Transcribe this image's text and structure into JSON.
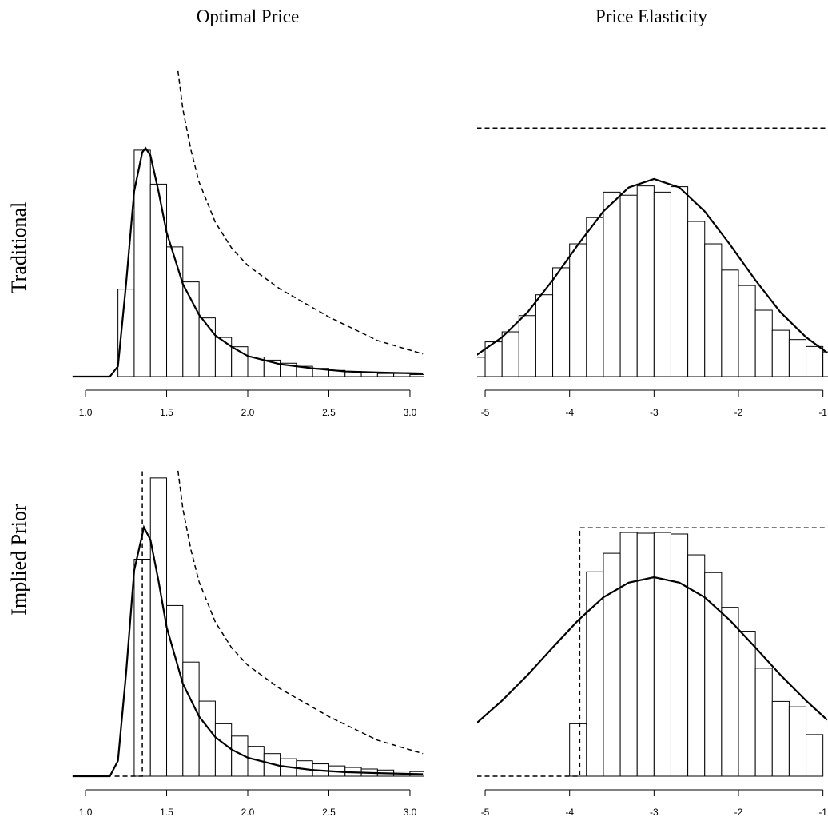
{
  "column_titles": [
    "Optimal Price",
    "Price Elasticity"
  ],
  "row_labels": [
    "Traditional",
    "Implied Prior"
  ],
  "chart_data": [
    {
      "type": "histogram",
      "bins": [
        1.2,
        1.3,
        1.4,
        1.5,
        1.6,
        1.7,
        1.8,
        1.9,
        2.0,
        2.1,
        2.2,
        2.3,
        2.4,
        2.5,
        2.6,
        2.7,
        2.8,
        2.9,
        3.0,
        3.1
      ],
      "counts": [
        0.85,
        2.2,
        1.87,
        1.26,
        0.92,
        0.57,
        0.38,
        0.29,
        0.19,
        0.16,
        0.13,
        0.1,
        0.08,
        0.06,
        0.05,
        0.04,
        0.03,
        0.03,
        0.02
      ],
      "color": "#ffffff",
      "series": [
        {
          "style": "solid",
          "x": [
            0.92,
            1.15,
            1.2,
            1.25,
            1.3,
            1.35,
            1.37,
            1.4,
            1.45,
            1.5,
            1.6,
            1.7,
            1.8,
            1.9,
            2.0,
            2.2,
            2.4,
            2.6,
            2.8,
            3.08
          ],
          "values": [
            0,
            0,
            0.1,
            0.9,
            1.8,
            2.18,
            2.22,
            2.15,
            1.8,
            1.4,
            0.9,
            0.6,
            0.4,
            0.29,
            0.2,
            0.12,
            0.08,
            0.05,
            0.04,
            0.03
          ]
        },
        {
          "style": "dashed",
          "x": [
            1.57,
            1.6,
            1.65,
            1.7,
            1.8,
            1.9,
            2.0,
            2.2,
            2.5,
            2.8,
            3.08
          ],
          "values": [
            2.97,
            2.6,
            2.2,
            1.89,
            1.5,
            1.25,
            1.08,
            0.85,
            0.58,
            0.35,
            0.22
          ]
        }
      ],
      "xlim": [
        0.916,
        3.084
      ],
      "ylim": [
        0,
        3.0
      ],
      "xticks": [
        {
          "value": 1.0,
          "label": "1.0"
        },
        1.5,
        {
          "value": 2.0,
          "label": "2.0"
        },
        2.5,
        {
          "value": 3.0,
          "label": "3.0"
        }
      ]
    },
    {
      "type": "histogram",
      "bins": [
        -5.2,
        -5.0,
        -4.8,
        -4.6,
        -4.4,
        -4.2,
        -4.0,
        -3.8,
        -3.6,
        -3.4,
        -3.2,
        -3.0,
        -2.8,
        -2.6,
        -2.4,
        -2.2,
        -2.0,
        -1.8,
        -1.6,
        -1.4,
        -1.2,
        -1.0,
        -0.8
      ],
      "counts": [
        0.025,
        0.045,
        0.058,
        0.079,
        0.106,
        0.141,
        0.172,
        0.206,
        0.239,
        0.235,
        0.247,
        0.239,
        0.246,
        0.201,
        0.172,
        0.138,
        0.118,
        0.086,
        0.06,
        0.048,
        0.039,
        0.032
      ],
      "color": "#ffffff",
      "series": [
        {
          "style": "solid",
          "x": [
            -5.1,
            -4.8,
            -4.5,
            -4.2,
            -3.9,
            -3.6,
            -3.3,
            -3.0,
            -2.7,
            -2.4,
            -2.1,
            -1.8,
            -1.5,
            -1.2,
            -0.95
          ],
          "values": [
            0.028,
            0.051,
            0.083,
            0.125,
            0.171,
            0.214,
            0.245,
            0.256,
            0.245,
            0.214,
            0.171,
            0.125,
            0.083,
            0.051,
            0.031
          ]
        },
        {
          "style": "dashed",
          "x": [
            -5.1,
            -0.95
          ],
          "values": [
            0.322,
            0.322
          ]
        }
      ],
      "xlim": [
        -5.095,
        -0.94
      ],
      "ylim": [
        0,
        0.4
      ],
      "xticks": [
        -5,
        -4,
        -3,
        -2,
        -1
      ]
    },
    {
      "type": "histogram",
      "bins": [
        1.3,
        1.4,
        1.5,
        1.6,
        1.7,
        1.8,
        1.9,
        2.0,
        2.1,
        2.2,
        2.3,
        2.4,
        2.5,
        2.6,
        2.7,
        2.8,
        2.9,
        3.0,
        3.1
      ],
      "counts": [
        2.11,
        2.9,
        1.66,
        1.11,
        0.73,
        0.51,
        0.39,
        0.29,
        0.22,
        0.17,
        0.15,
        0.12,
        0.1,
        0.085,
        0.07,
        0.06,
        0.05,
        0.045
      ],
      "color": "#ffffff",
      "series": [
        {
          "style": "solid",
          "x": [
            0.92,
            1.15,
            1.2,
            1.25,
            1.3,
            1.36,
            1.4,
            1.45,
            1.5,
            1.6,
            1.7,
            1.8,
            1.9,
            2.0,
            2.2,
            2.4,
            2.6,
            2.8,
            3.08
          ],
          "values": [
            0,
            0,
            0.15,
            1.0,
            2.0,
            2.42,
            2.3,
            1.9,
            1.45,
            0.9,
            0.58,
            0.38,
            0.26,
            0.18,
            0.1,
            0.06,
            0.04,
            0.03,
            0.02
          ]
        },
        {
          "style": "dashed",
          "x": [
            1.18,
            1.35,
            1.35,
            1.45,
            1.57,
            1.6,
            1.65,
            1.7,
            1.8,
            1.9,
            2.0,
            2.2,
            2.5,
            2.8,
            3.08
          ],
          "values": [
            0,
            0,
            3.0,
            null,
            2.97,
            2.6,
            2.2,
            1.89,
            1.5,
            1.25,
            1.08,
            0.85,
            0.58,
            0.35,
            0.22
          ]
        }
      ],
      "xlim": [
        0.916,
        3.084
      ],
      "ylim": [
        0,
        3.0
      ],
      "xticks": [
        {
          "value": 1.0,
          "label": "1.0"
        },
        1.5,
        {
          "value": 2.0,
          "label": "2.0"
        },
        2.5,
        {
          "value": 3.0,
          "label": "3.0"
        }
      ]
    },
    {
      "type": "histogram",
      "bins": [
        -4.0,
        -3.8,
        -3.6,
        -3.4,
        -3.2,
        -3.0,
        -2.8,
        -2.6,
        -2.4,
        -2.2,
        -2.0,
        -1.8,
        -1.6,
        -1.4,
        -1.2,
        -1.0
      ],
      "counts": [
        0.068,
        0.265,
        0.289,
        0.316,
        0.315,
        0.316,
        0.314,
        0.287,
        0.264,
        0.219,
        0.188,
        0.14,
        0.097,
        0.09,
        0.054
      ],
      "color": "#ffffff",
      "series": [
        {
          "style": "solid",
          "x": [
            -5.1,
            -4.8,
            -4.5,
            -4.2,
            -3.9,
            -3.6,
            -3.3,
            -3.0,
            -2.7,
            -2.4,
            -2.1,
            -1.8,
            -1.5,
            -1.2,
            -0.95
          ],
          "values": [
            0.069,
            0.098,
            0.131,
            0.167,
            0.202,
            0.232,
            0.251,
            0.258,
            0.251,
            0.232,
            0.202,
            0.167,
            0.131,
            0.098,
            0.073
          ]
        },
        {
          "style": "dashed",
          "x": [
            -5.1,
            -3.88,
            -3.88,
            -0.95
          ],
          "values": [
            0,
            0,
            0.322,
            0.322
          ]
        }
      ],
      "xlim": [
        -5.095,
        -0.94
      ],
      "ylim": [
        0,
        0.4
      ],
      "xticks": [
        -5,
        -4,
        -3,
        -2,
        -1
      ]
    }
  ]
}
